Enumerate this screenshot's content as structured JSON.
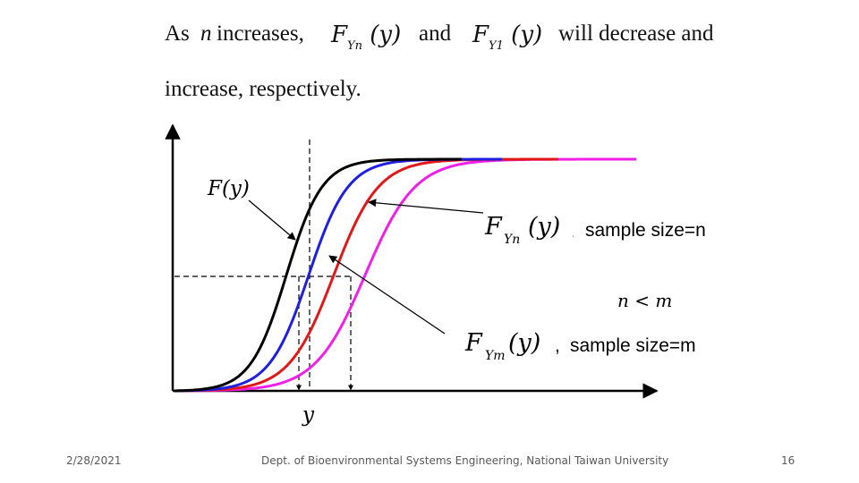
{
  "slide": {
    "line1": {
      "prefix": "As",
      "n_symbol": "n",
      "increases": "increases,",
      "and": "and",
      "suffix": "will decrease and"
    },
    "line2": "increase, respectively.",
    "math": {
      "F": "F",
      "sub_Yn": "Yn",
      "sub_Y1": "Y1",
      "arg": "(y)"
    }
  },
  "figure": {
    "label_F": "F(y)",
    "label_n": "sample size=n",
    "label_m": "sample size=m",
    "comparison": "n < m",
    "x_axis_label": "y",
    "colors": {
      "F": "#000000",
      "Yn": "#1f1fe0",
      "Y1": "#e01818",
      "Ym": "#f020e8"
    }
  },
  "footer": {
    "date": "2/28/2021",
    "org": "Dept. of Bioenvironmental Systems Engineering, National Taiwan University",
    "page": "16"
  }
}
